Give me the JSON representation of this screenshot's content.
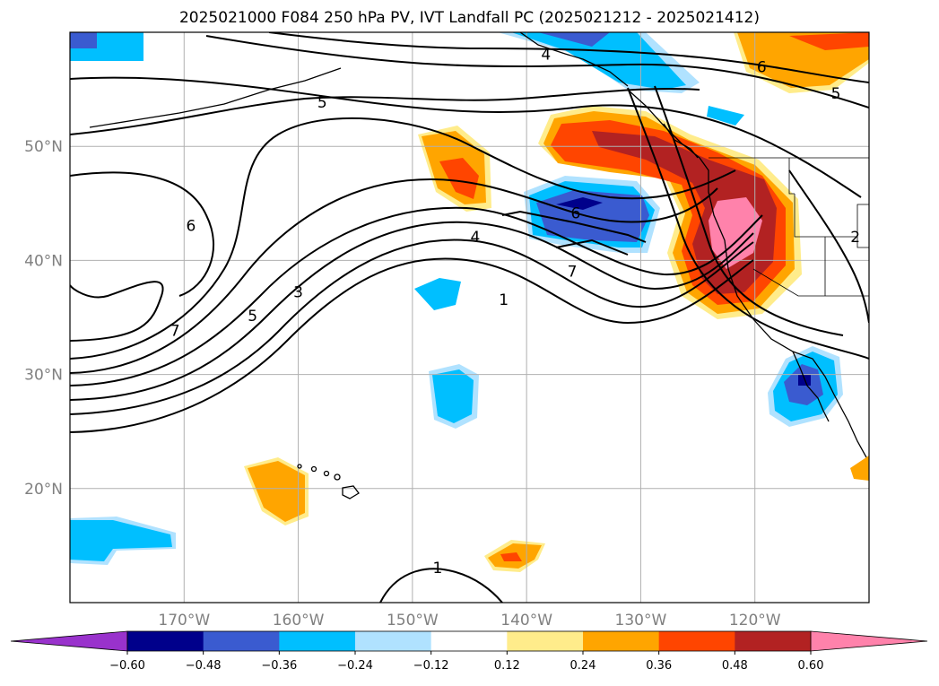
{
  "title": "2025021000 F084 250 hPa PV, IVT Landfall PC (2025021212 - 2025021412)",
  "map": {
    "lon_range": [
      -180,
      -110
    ],
    "lat_range": [
      10,
      60
    ],
    "lon_ticks": [
      {
        "lon": -170,
        "label": "170°W"
      },
      {
        "lon": -160,
        "label": "160°W"
      },
      {
        "lon": -150,
        "label": "150°W"
      },
      {
        "lon": -140,
        "label": "140°W"
      },
      {
        "lon": -130,
        "label": "130°W"
      },
      {
        "lon": -120,
        "label": "120°W"
      }
    ],
    "lat_ticks": [
      {
        "lat": 50,
        "label": "50°N"
      },
      {
        "lat": 40,
        "label": "40°N"
      },
      {
        "lat": 30,
        "label": "30°N"
      },
      {
        "lat": 20,
        "label": "20°N"
      }
    ],
    "gridlines": true
  },
  "contour_labels": [
    {
      "text": "4",
      "lon": -138.3,
      "lat": 57.9
    },
    {
      "text": "6",
      "lon": -119.4,
      "lat": 56.8
    },
    {
      "text": "5",
      "lon": -112.9,
      "lat": 54.5
    },
    {
      "text": "5",
      "lon": -157.9,
      "lat": 53.7
    },
    {
      "text": "6",
      "lon": -169.4,
      "lat": 42.9
    },
    {
      "text": "6",
      "lon": -135.7,
      "lat": 44.0
    },
    {
      "text": "4",
      "lon": -144.5,
      "lat": 41.9
    },
    {
      "text": "7",
      "lon": -136.0,
      "lat": 38.9
    },
    {
      "text": "2",
      "lon": -111.2,
      "lat": 41.9
    },
    {
      "text": "3",
      "lon": -160.0,
      "lat": 37.1
    },
    {
      "text": "5",
      "lon": -164.0,
      "lat": 35.0
    },
    {
      "text": "7",
      "lon": -170.8,
      "lat": 33.7
    },
    {
      "text": "1",
      "lon": -142.0,
      "lat": 36.4
    },
    {
      "text": "1",
      "lon": -147.8,
      "lat": 12.9
    }
  ],
  "colorbar": {
    "ticks": [
      "−0.60",
      "−0.48",
      "−0.36",
      "−0.24",
      "−0.12",
      "0.12",
      "0.24",
      "0.36",
      "0.48",
      "0.60"
    ],
    "colors": [
      "#9932cc",
      "#00008b",
      "#3a5bd0",
      "#00bfff",
      "#b0e2ff",
      "#ffffff",
      "#ffec8b",
      "#ffa500",
      "#ff4500",
      "#b22222",
      "#ff82ab"
    ]
  }
}
